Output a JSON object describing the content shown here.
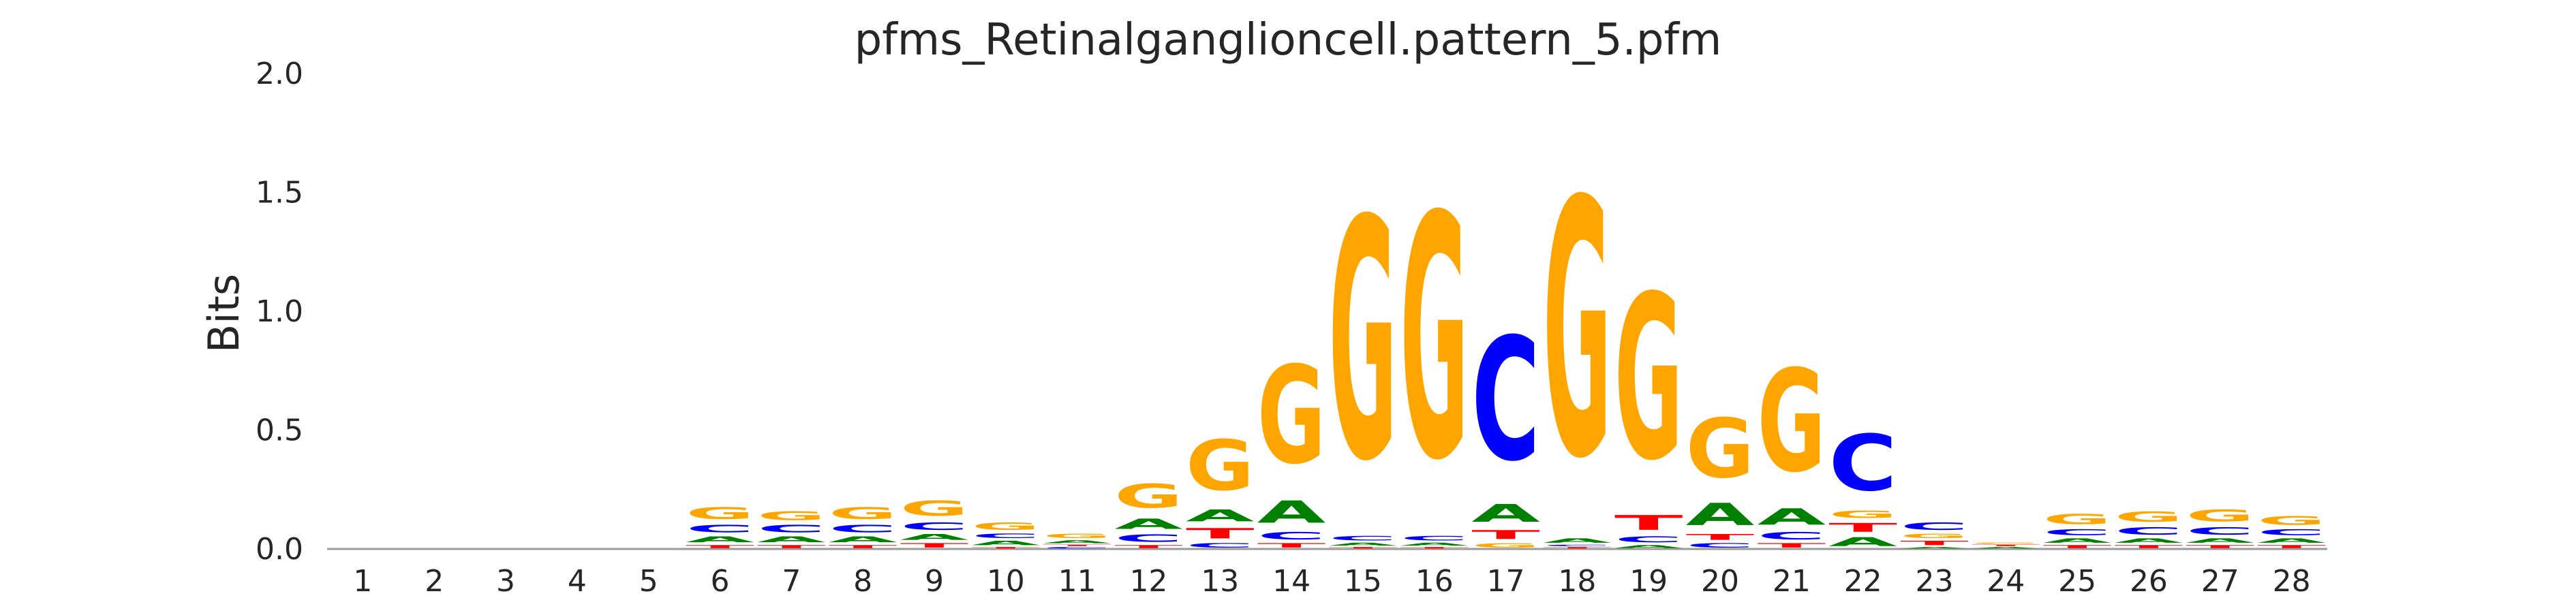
{
  "chart_data": {
    "type": "sequence-logo",
    "title": "pfms_Retinalganglioncell.pattern_5.pfm",
    "ylabel": "Bits",
    "xlabel": "",
    "ylim": [
      0,
      2.0
    ],
    "yticks": [
      "0.0",
      "0.5",
      "1.0",
      "1.5",
      "2.0"
    ],
    "grid": false,
    "colors": {
      "A": "#008000",
      "C": "#0000ff",
      "G": "#ffa500",
      "T": "#ff0000"
    },
    "positions": [
      {
        "pos": "1",
        "letters": []
      },
      {
        "pos": "2",
        "letters": []
      },
      {
        "pos": "3",
        "letters": []
      },
      {
        "pos": "4",
        "letters": []
      },
      {
        "pos": "5",
        "letters": []
      },
      {
        "pos": "6",
        "letters": [
          {
            "base": "T",
            "bits": 0.02
          },
          {
            "base": "A",
            "bits": 0.04
          },
          {
            "base": "C",
            "bits": 0.05
          },
          {
            "base": "G",
            "bits": 0.08
          }
        ]
      },
      {
        "pos": "7",
        "letters": [
          {
            "base": "T",
            "bits": 0.02
          },
          {
            "base": "A",
            "bits": 0.04
          },
          {
            "base": "C",
            "bits": 0.05
          },
          {
            "base": "G",
            "bits": 0.06
          }
        ]
      },
      {
        "pos": "8",
        "letters": [
          {
            "base": "T",
            "bits": 0.02
          },
          {
            "base": "A",
            "bits": 0.04
          },
          {
            "base": "C",
            "bits": 0.05
          },
          {
            "base": "G",
            "bits": 0.08
          }
        ]
      },
      {
        "pos": "9",
        "letters": [
          {
            "base": "T",
            "bits": 0.03
          },
          {
            "base": "A",
            "bits": 0.04
          },
          {
            "base": "C",
            "bits": 0.05
          },
          {
            "base": "G",
            "bits": 0.1
          }
        ]
      },
      {
        "pos": "10",
        "letters": [
          {
            "base": "T",
            "bits": 0.01
          },
          {
            "base": "A",
            "bits": 0.03
          },
          {
            "base": "C",
            "bits": 0.03
          },
          {
            "base": "G",
            "bits": 0.05
          }
        ]
      },
      {
        "pos": "11",
        "letters": [
          {
            "base": "C",
            "bits": 0.01
          },
          {
            "base": "T",
            "bits": 0.01
          },
          {
            "base": "A",
            "bits": 0.02
          },
          {
            "base": "G",
            "bits": 0.03
          }
        ]
      },
      {
        "pos": "12",
        "letters": [
          {
            "base": "T",
            "bits": 0.02
          },
          {
            "base": "C",
            "bits": 0.05
          },
          {
            "base": "A",
            "bits": 0.07
          },
          {
            "base": "G",
            "bits": 0.16
          }
        ]
      },
      {
        "pos": "13",
        "letters": [
          {
            "base": "C",
            "bits": 0.03
          },
          {
            "base": "T",
            "bits": 0.07
          },
          {
            "base": "A",
            "bits": 0.08
          },
          {
            "base": "G",
            "bits": 0.34
          }
        ]
      },
      {
        "pos": "14",
        "letters": [
          {
            "base": "T",
            "bits": 0.03
          },
          {
            "base": "C",
            "bits": 0.05
          },
          {
            "base": "A",
            "bits": 0.15
          },
          {
            "base": "G",
            "bits": 0.66
          }
        ]
      },
      {
        "pos": "15",
        "letters": [
          {
            "base": "T",
            "bits": 0.01
          },
          {
            "base": "A",
            "bits": 0.02
          },
          {
            "base": "C",
            "bits": 0.03
          },
          {
            "base": "G",
            "bits": 1.62
          }
        ]
      },
      {
        "pos": "16",
        "letters": [
          {
            "base": "T",
            "bits": 0.01
          },
          {
            "base": "A",
            "bits": 0.02
          },
          {
            "base": "C",
            "bits": 0.03
          },
          {
            "base": "G",
            "bits": 1.64
          }
        ]
      },
      {
        "pos": "17",
        "letters": [
          {
            "base": "G",
            "bits": 0.03
          },
          {
            "base": "T",
            "bits": 0.06
          },
          {
            "base": "A",
            "bits": 0.12
          },
          {
            "base": "C",
            "bits": 0.83
          }
        ]
      },
      {
        "pos": "18",
        "letters": [
          {
            "base": "T",
            "bits": 0.01
          },
          {
            "base": "C",
            "bits": 0.01
          },
          {
            "base": "A",
            "bits": 0.03
          },
          {
            "base": "G",
            "bits": 1.73
          }
        ]
      },
      {
        "pos": "19",
        "letters": [
          {
            "base": "A",
            "bits": 0.02
          },
          {
            "base": "C",
            "bits": 0.04
          },
          {
            "base": "T",
            "bits": 0.1
          },
          {
            "base": "G",
            "bits": 1.11
          }
        ]
      },
      {
        "pos": "20",
        "letters": [
          {
            "base": "C",
            "bits": 0.03
          },
          {
            "base": "T",
            "bits": 0.04
          },
          {
            "base": "A",
            "bits": 0.15
          },
          {
            "base": "G",
            "bits": 0.4
          }
        ]
      },
      {
        "pos": "21",
        "letters": [
          {
            "base": "T",
            "bits": 0.03
          },
          {
            "base": "C",
            "bits": 0.05
          },
          {
            "base": "A",
            "bits": 0.11
          },
          {
            "base": "G",
            "bits": 0.69
          }
        ]
      },
      {
        "pos": "22",
        "letters": [
          {
            "base": "A",
            "bits": 0.06
          },
          {
            "base": "T",
            "bits": 0.06
          },
          {
            "base": "G",
            "bits": 0.05
          },
          {
            "base": "C",
            "bits": 0.38
          }
        ]
      },
      {
        "pos": "23",
        "letters": [
          {
            "base": "A",
            "bits": 0.01
          },
          {
            "base": "T",
            "bits": 0.03
          },
          {
            "base": "G",
            "bits": 0.03
          },
          {
            "base": "C",
            "bits": 0.05
          }
        ]
      },
      {
        "pos": "24",
        "letters": [
          {
            "base": "A",
            "bits": 0.01
          },
          {
            "base": "T",
            "bits": 0.01
          },
          {
            "base": "G",
            "bits": 0.01
          }
        ]
      },
      {
        "pos": "25",
        "letters": [
          {
            "base": "T",
            "bits": 0.02
          },
          {
            "base": "A",
            "bits": 0.03
          },
          {
            "base": "C",
            "bits": 0.04
          },
          {
            "base": "G",
            "bits": 0.07
          }
        ]
      },
      {
        "pos": "26",
        "letters": [
          {
            "base": "T",
            "bits": 0.02
          },
          {
            "base": "A",
            "bits": 0.03
          },
          {
            "base": "C",
            "bits": 0.05
          },
          {
            "base": "G",
            "bits": 0.07
          }
        ]
      },
      {
        "pos": "27",
        "letters": [
          {
            "base": "T",
            "bits": 0.02
          },
          {
            "base": "A",
            "bits": 0.03
          },
          {
            "base": "C",
            "bits": 0.05
          },
          {
            "base": "G",
            "bits": 0.08
          }
        ]
      },
      {
        "pos": "28",
        "letters": [
          {
            "base": "T",
            "bits": 0.02
          },
          {
            "base": "A",
            "bits": 0.03
          },
          {
            "base": "C",
            "bits": 0.04
          },
          {
            "base": "G",
            "bits": 0.06
          }
        ]
      }
    ]
  }
}
